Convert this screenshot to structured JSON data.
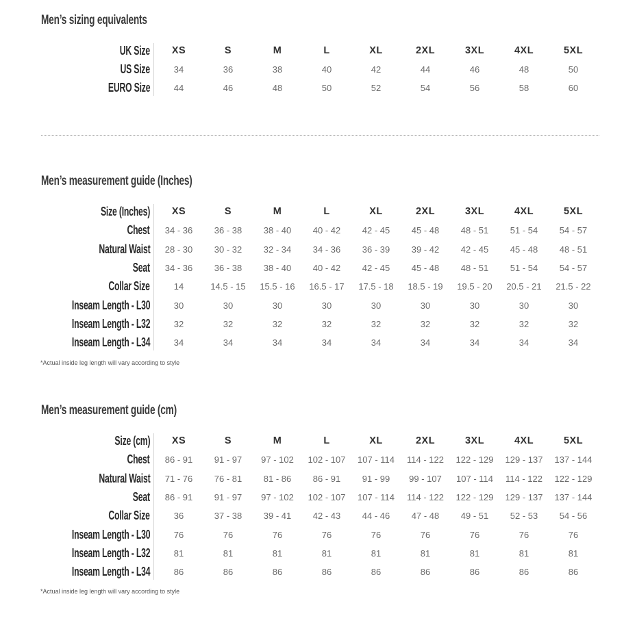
{
  "sizes": [
    "XS",
    "S",
    "M",
    "L",
    "XL",
    "2XL",
    "3XL",
    "4XL",
    "5XL"
  ],
  "equivalents": {
    "title": "Men’s sizing equivalents",
    "rows": [
      {
        "label": "UK Size",
        "values": [
          "XS",
          "S",
          "M",
          "L",
          "XL",
          "2XL",
          "3XL",
          "4XL",
          "5XL"
        ],
        "header": true
      },
      {
        "label": "US Size",
        "values": [
          "34",
          "36",
          "38",
          "40",
          "42",
          "44",
          "46",
          "48",
          "50"
        ]
      },
      {
        "label": "EURO Size",
        "values": [
          "44",
          "46",
          "48",
          "50",
          "52",
          "54",
          "56",
          "58",
          "60"
        ]
      }
    ]
  },
  "inches": {
    "title": "Men’s measurement guide (Inches)",
    "note": "*Actual inside leg length will vary according to style",
    "rows": [
      {
        "label": "Size (Inches)",
        "values": [
          "XS",
          "S",
          "M",
          "L",
          "XL",
          "2XL",
          "3XL",
          "4XL",
          "5XL"
        ],
        "header": true
      },
      {
        "label": "Chest",
        "values": [
          "34 - 36",
          "36 - 38",
          "38 - 40",
          "40 - 42",
          "42 - 45",
          "45 - 48",
          "48 - 51",
          "51 - 54",
          "54 - 57"
        ]
      },
      {
        "label": "Natural Waist",
        "values": [
          "28 - 30",
          "30 - 32",
          "32 - 34",
          "34 - 36",
          "36 - 39",
          "39 - 42",
          "42 - 45",
          "45 - 48",
          "48 - 51"
        ]
      },
      {
        "label": "Seat",
        "values": [
          "34 - 36",
          "36 - 38",
          "38 - 40",
          "40 - 42",
          "42 - 45",
          "45 - 48",
          "48 - 51",
          "51 - 54",
          "54 - 57"
        ]
      },
      {
        "label": "Collar Size",
        "values": [
          "14",
          "14.5 - 15",
          "15.5 - 16",
          "16.5 - 17",
          "17.5 - 18",
          "18.5 - 19",
          "19.5 - 20",
          "20.5 - 21",
          "21.5 - 22"
        ]
      },
      {
        "label": "Inseam Length - L30",
        "values": [
          "30",
          "30",
          "30",
          "30",
          "30",
          "30",
          "30",
          "30",
          "30"
        ]
      },
      {
        "label": "Inseam Length - L32",
        "values": [
          "32",
          "32",
          "32",
          "32",
          "32",
          "32",
          "32",
          "32",
          "32"
        ]
      },
      {
        "label": "Inseam Length - L34",
        "values": [
          "34",
          "34",
          "34",
          "34",
          "34",
          "34",
          "34",
          "34",
          "34"
        ]
      }
    ]
  },
  "cm": {
    "title": "Men’s measurement guide (cm)",
    "note": "*Actual inside leg length will vary according to style",
    "rows": [
      {
        "label": "Size (cm)",
        "values": [
          "XS",
          "S",
          "M",
          "L",
          "XL",
          "2XL",
          "3XL",
          "4XL",
          "5XL"
        ],
        "header": true
      },
      {
        "label": "Chest",
        "values": [
          "86 - 91",
          "91 - 97",
          "97 - 102",
          "102 - 107",
          "107 - 114",
          "114 - 122",
          "122 - 129",
          "129 - 137",
          "137 - 144"
        ]
      },
      {
        "label": "Natural Waist",
        "values": [
          "71 - 76",
          "76 - 81",
          "81 - 86",
          "86 - 91",
          "91 - 99",
          "99 - 107",
          "107 - 114",
          "114 - 122",
          "122 - 129"
        ]
      },
      {
        "label": "Seat",
        "values": [
          "86 - 91",
          "91 - 97",
          "97 - 102",
          "102 - 107",
          "107 - 114",
          "114 - 122",
          "122 - 129",
          "129 - 137",
          "137 - 144"
        ]
      },
      {
        "label": "Collar Size",
        "values": [
          "36",
          "37 - 38",
          "39 - 41",
          "42 - 43",
          "44 - 46",
          "47 - 48",
          "49 - 51",
          "52 - 53",
          "54 - 56"
        ]
      },
      {
        "label": "Inseam Length - L30",
        "values": [
          "76",
          "76",
          "76",
          "76",
          "76",
          "76",
          "76",
          "76",
          "76"
        ]
      },
      {
        "label": "Inseam Length - L32",
        "values": [
          "81",
          "81",
          "81",
          "81",
          "81",
          "81",
          "81",
          "81",
          "81"
        ]
      },
      {
        "label": "Inseam Length - L34",
        "values": [
          "86",
          "86",
          "86",
          "86",
          "86",
          "86",
          "86",
          "86",
          "86"
        ]
      }
    ]
  }
}
